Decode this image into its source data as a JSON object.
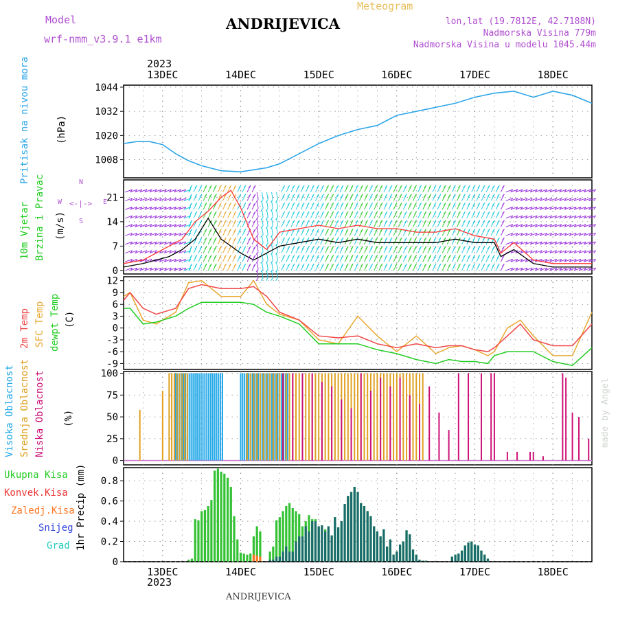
{
  "header": {
    "model_label": "Model",
    "model_name": "wrf-nmm_v3.9.1 e1km",
    "title": "ANDRIJEVICA",
    "subtitle": "Meteogram",
    "lonlat": "lon,lat (19.7812E, 42.7188N)",
    "altitude": "Nadmorska Visina 779m",
    "model_altitude": "Nadmorska Visina u modelu 1045.44m",
    "credit": "made by Angel",
    "footer": "ANDRIJEVICA",
    "year_top": "2023",
    "year_bottom": "2023"
  },
  "colors": {
    "pressure": "#2ea6e8",
    "wind_speed": "#000000",
    "gust": "#ff3333",
    "temp2m": "#f04646",
    "sfc_temp": "#e8a832",
    "dewpoint": "#22cc22",
    "high_cloud": "#22a8e8",
    "mid_cloud": "#e0a020",
    "low_cloud": "#cc1177",
    "total_precip": "#33c233",
    "conv_precip": "#ee3333",
    "frozen_precip": "#ff7722",
    "snow": "#3344dd",
    "hail": "#22ccbb",
    "grid": "#888888"
  },
  "panel_labels": {
    "pressure": [
      "Pritisak na nivou mora",
      "(hPa)"
    ],
    "wind": [
      "10m Vjetar",
      "Brzina i Pravac",
      "(m/s)"
    ],
    "wind_compass": {
      "n": "N",
      "s": "S",
      "e": "E",
      "w": "W",
      "ne": "N",
      "se": "S"
    },
    "temp": [
      "2m Temp",
      "SFC Temp",
      "dewpt Temp",
      "(C)"
    ],
    "cloud": [
      "Visoka Oblacnost",
      "Srednja Oblacnost",
      "Niska Oblacnost",
      "(%)"
    ],
    "precip_legend": [
      "Ukupna Kisa",
      "Konvek.Kisa",
      "Zaledj.Kisa",
      "Snijeg",
      "Grad"
    ],
    "precip_axis": "1hr Precip (mm)"
  },
  "chart_data": [
    {
      "type": "line",
      "name": "pressure",
      "x_unit": "hours since 2023-12-12 12:00",
      "x_ticks": [
        "13DEC",
        "14DEC",
        "15DEC",
        "16DEC",
        "17DEC",
        "18DEC"
      ],
      "y_ticks": [
        1008,
        1020,
        1032,
        1044
      ],
      "ylim": [
        999,
        1045
      ],
      "x": [
        0,
        4,
        8,
        12,
        16,
        20,
        24,
        30,
        36,
        40,
        44,
        48,
        54,
        60,
        66,
        72,
        78,
        84,
        90,
        96,
        102,
        108,
        114,
        120,
        126,
        132,
        138,
        144
      ],
      "values": [
        1016,
        1017,
        1017,
        1015.5,
        1011,
        1007.5,
        1005,
        1002.5,
        1002,
        1003,
        1004,
        1006,
        1011,
        1016,
        1020,
        1023,
        1025,
        1030,
        1032,
        1034,
        1036,
        1039,
        1041,
        1042,
        1039,
        1042,
        1040,
        1036
      ]
    },
    {
      "type": "line",
      "name": "wind",
      "y_ticks": [
        0,
        7,
        14,
        21
      ],
      "ylim": [
        -1,
        26
      ],
      "x": [
        0,
        6,
        10,
        14,
        18,
        22,
        26,
        30,
        33,
        36,
        40,
        44,
        48,
        54,
        60,
        66,
        72,
        78,
        84,
        90,
        96,
        102,
        108,
        114,
        116,
        120,
        126,
        132,
        138,
        144
      ],
      "speed": [
        1,
        2,
        3,
        4,
        6,
        9,
        15,
        9,
        7,
        5,
        3,
        5,
        7,
        8,
        9,
        8,
        9,
        8,
        8,
        8,
        8,
        9,
        8,
        8,
        4,
        6,
        2,
        1,
        1,
        1
      ],
      "gust": [
        2,
        3,
        5,
        7,
        9,
        14,
        17,
        21,
        23,
        18,
        9,
        6,
        11,
        12,
        13,
        12,
        13,
        12,
        12,
        11,
        11,
        12,
        10,
        9,
        5,
        8,
        3,
        2,
        2,
        2
      ]
    },
    {
      "type": "line",
      "name": "temperature",
      "y_ticks": [
        -9,
        -6,
        -3,
        0,
        3,
        6,
        9,
        12
      ],
      "ylim": [
        -10.5,
        13
      ],
      "x": [
        0,
        2,
        6,
        10,
        16,
        20,
        24,
        30,
        36,
        40,
        44,
        48,
        54,
        60,
        66,
        72,
        78,
        84,
        90,
        96,
        100,
        104,
        108,
        112,
        114,
        118,
        122,
        126,
        132,
        138,
        144
      ],
      "t2m": [
        7,
        9,
        5,
        3.5,
        5,
        10,
        11,
        10,
        10,
        10.5,
        8,
        4,
        2,
        -2,
        -2.5,
        -2,
        -4,
        -5,
        -4,
        -5,
        -4.5,
        -4.5,
        -5.5,
        -6,
        -5,
        -2,
        1,
        -3,
        -4.5,
        -4.5,
        1
      ],
      "sfc": [
        8,
        9,
        2,
        1,
        4,
        11.5,
        12,
        8,
        8,
        12,
        6,
        3.5,
        2,
        -3,
        -4,
        3,
        -2,
        -6,
        -2,
        -6.5,
        -5,
        -4.5,
        -5.5,
        -7,
        -6,
        0,
        2,
        -2,
        -7,
        -7,
        4
      ],
      "dewpt": [
        5,
        5,
        1,
        1.5,
        3,
        5,
        6.5,
        6.5,
        6.5,
        6,
        4,
        3,
        1,
        -4,
        -4,
        -4,
        -5.5,
        -6.5,
        -8,
        -9,
        -8,
        -8.5,
        -8.5,
        -9,
        -7,
        -6,
        -6,
        -6,
        -8.5,
        -9.5,
        -5
      ]
    },
    {
      "type": "bar",
      "name": "cloud",
      "y_ticks": [
        0,
        25,
        50,
        75,
        100
      ],
      "ylim": [
        -5,
        102
      ]
    },
    {
      "type": "bar",
      "name": "precip",
      "y_ticks": [
        0,
        0.2,
        0.4,
        0.6,
        0.8
      ],
      "ylim": [
        0,
        0.93
      ],
      "x": [
        20,
        21,
        22,
        23,
        24,
        25,
        26,
        27,
        28,
        29,
        30,
        31,
        32,
        33,
        34,
        35,
        36,
        37,
        38,
        39,
        40,
        41,
        42,
        45,
        46,
        47,
        48,
        49,
        50,
        51,
        52,
        53,
        54,
        55,
        56,
        57,
        58,
        59,
        60,
        61,
        62,
        63,
        64,
        65,
        66,
        67,
        68,
        69,
        70,
        71,
        72,
        73,
        74,
        75,
        76,
        77,
        78,
        79,
        80,
        81,
        82,
        83,
        84,
        85,
        86,
        87,
        88,
        89,
        90,
        91,
        92,
        93,
        101,
        102,
        103,
        104,
        105,
        106,
        107,
        108,
        109,
        110,
        111,
        112
      ],
      "total": [
        0.02,
        0.03,
        0.42,
        0.41,
        0.5,
        0.51,
        0.55,
        0.61,
        0.9,
        0.92,
        0.89,
        0.87,
        0.83,
        0.74,
        0.45,
        0.22,
        0.09,
        0.08,
        0.07,
        0.08,
        0.25,
        0.35,
        0.3,
        0.1,
        0.15,
        0.41,
        0.44,
        0.5,
        0.55,
        0.58,
        0.53,
        0.5,
        0.47,
        0.35,
        0.4,
        0.46,
        0.42,
        0.42,
        0.35,
        0.36,
        0.32,
        0.35,
        0.26,
        0.44,
        0.34,
        0.4,
        0.57,
        0.65,
        0.69,
        0.74,
        0.69,
        0.58,
        0.55,
        0.5,
        0.45,
        0.35,
        0.3,
        0.25,
        0.32,
        0.15,
        0.22,
        0.07,
        0.1,
        0.17,
        0.2,
        0.31,
        0.27,
        0.12,
        0.07,
        0.02,
        0.01,
        0.01,
        0.05,
        0.07,
        0.08,
        0.11,
        0.16,
        0.19,
        0.2,
        0.17,
        0.16,
        0.11,
        0.07,
        0.03
      ],
      "snow": [
        0,
        0,
        0,
        0,
        0,
        0,
        0,
        0,
        0,
        0,
        0,
        0,
        0,
        0,
        0,
        0,
        0,
        0,
        0,
        0,
        0,
        0,
        0,
        0.02,
        0.02,
        0.05,
        0.05,
        0.1,
        0.15,
        0.1,
        0.1,
        0.2,
        0.25,
        0.25,
        0.35,
        0.3,
        0.4,
        0.4,
        0.35,
        0.36,
        0.3,
        0.35,
        0.26,
        0.44,
        0.34,
        0.4,
        0.57,
        0.65,
        0.69,
        0.74,
        0.69,
        0.58,
        0.55,
        0.5,
        0.45,
        0.35,
        0.3,
        0.25,
        0.32,
        0.15,
        0.22,
        0.07,
        0.1,
        0.17,
        0.2,
        0.31,
        0.27,
        0.12,
        0.07,
        0.02,
        0.01,
        0.01,
        0.05,
        0.07,
        0.08,
        0.11,
        0.16,
        0.19,
        0.2,
        0.17,
        0.16,
        0.11,
        0.07,
        0.03
      ],
      "frozen": [
        0,
        0,
        0,
        0,
        0,
        0,
        0,
        0,
        0,
        0,
        0,
        0,
        0,
        0,
        0,
        0,
        0,
        0,
        0,
        0,
        0.07,
        0.06,
        0.05,
        0,
        0,
        0,
        0,
        0,
        0,
        0,
        0,
        0,
        0,
        0,
        0,
        0,
        0,
        0,
        0,
        0,
        0,
        0,
        0,
        0,
        0,
        0,
        0,
        0,
        0,
        0,
        0,
        0,
        0,
        0,
        0,
        0,
        0,
        0,
        0,
        0,
        0,
        0,
        0,
        0,
        0,
        0,
        0,
        0,
        0,
        0,
        0,
        0,
        0,
        0,
        0,
        0,
        0,
        0,
        0,
        0,
        0,
        0,
        0,
        0
      ]
    }
  ]
}
